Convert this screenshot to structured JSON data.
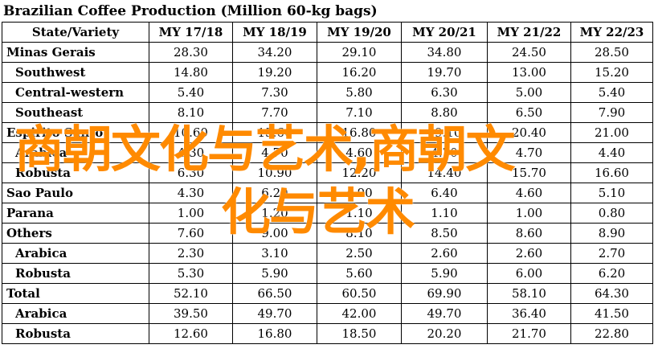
{
  "title": "Brazilian Coffee Production (Million 60-kg bags)",
  "headers": [
    "State/Variety",
    "MY 17/18",
    "MY 18/19",
    "MY 19/20",
    "MY 20/21",
    "MY 21/22",
    "MY 22/23"
  ],
  "rows": [
    {
      "label": "Minas Gerais",
      "values": [
        "28.30",
        "34.20",
        "29.10",
        "34.80",
        "24.50",
        "28.50"
      ]
    },
    {
      "label": "Southwest",
      "values": [
        "14.80",
        "19.20",
        "16.20",
        "19.70",
        "13.00",
        "15.20"
      ]
    },
    {
      "label": "Central-western",
      "values": [
        "5.40",
        "7.30",
        "5.80",
        "6.30",
        "5.00",
        "5.40"
      ]
    },
    {
      "label": "Southeast",
      "values": [
        "8.10",
        "7.70",
        "7.10",
        "8.80",
        "6.50",
        "7.90"
      ]
    },
    {
      "label": "Espirito Santo",
      "values": [
        "10.60",
        "15.60",
        "16.80",
        "19.10",
        "20.40",
        "21.00"
      ]
    },
    {
      "label": "Arabica",
      "values": [
        "4.30",
        "4.70",
        "4.60",
        "4.70",
        "4.70",
        "4.40"
      ]
    },
    {
      "label": "Robusta",
      "values": [
        "6.30",
        "10.90",
        "12.20",
        "14.40",
        "15.70",
        "16.60"
      ]
    },
    {
      "label": "Sao Paulo",
      "values": [
        "4.30",
        "6.20",
        "4.90",
        "6.40",
        "4.60",
        "5.10"
      ]
    },
    {
      "label": "Parana",
      "values": [
        "1.00",
        "1.20",
        "1.10",
        "1.10",
        "1.00",
        "0.80"
      ]
    },
    {
      "label": "Others",
      "values": [
        "7.60",
        "9.00",
        "8.10",
        "8.50",
        "8.60",
        "8.90"
      ]
    },
    {
      "label": "Arabica",
      "values": [
        "2.30",
        "3.10",
        "2.50",
        "2.60",
        "2.60",
        "2.70"
      ]
    },
    {
      "label": "Robusta",
      "values": [
        "5.30",
        "5.90",
        "5.60",
        "5.90",
        "6.00",
        "6.20"
      ]
    },
    {
      "label": "Total",
      "values": [
        "52.10",
        "66.50",
        "60.50",
        "69.90",
        "58.10",
        "64.30"
      ]
    },
    {
      "label": "Arabica",
      "values": [
        "39.50",
        "49.70",
        "42.00",
        "49.70",
        "36.40",
        "41.50"
      ]
    },
    {
      "label": "Robusta",
      "values": [
        "12.60",
        "16.80",
        "18.50",
        "20.20",
        "21.70",
        "22.80"
      ]
    }
  ],
  "watermark": {
    "line1": "商朝文化与艺术,商朝文",
    "line2": "化与艺术",
    "color": "#ff8a00"
  }
}
